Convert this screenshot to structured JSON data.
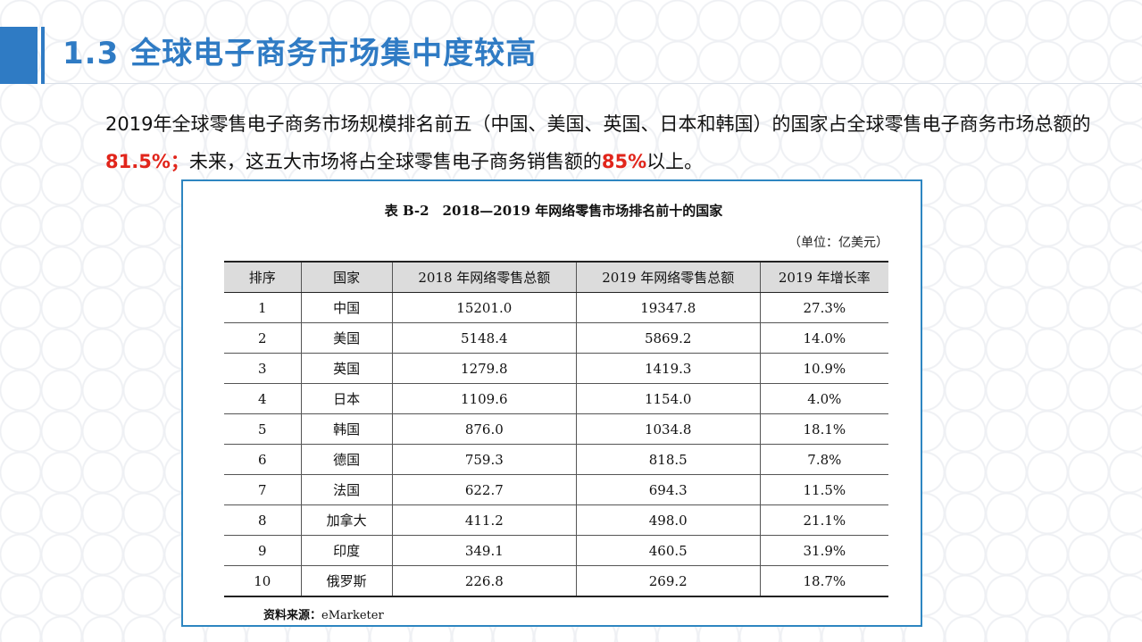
{
  "slide": {
    "title": "1.3 全球电子商务市场集中度较高",
    "intro": {
      "part1": "2019年全球零售电子商务市场规模排名前五（中国、美国、英国、日本和韩国）的国家占全球零售电子商务市场总额的",
      "highlight1": "81.5%；",
      "part2": "未来，这五大市场将占全球零售电子商务销售额的",
      "highlight2": "85%",
      "part3": "以上。"
    },
    "accent_color": "#2f7bc4",
    "highlight_color": "#e1251b"
  },
  "table": {
    "title": "表 B-2　2018—2019 年网络零售市场排名前十的国家",
    "unit": "（单位：亿美元）",
    "headers": [
      "排序",
      "国家",
      "2018 年网络零售总额",
      "2019 年网络零售总额",
      "2019 年增长率"
    ],
    "rows": [
      [
        "1",
        "中国",
        "15201.0",
        "19347.8",
        "27.3%"
      ],
      [
        "2",
        "美国",
        "5148.4",
        "5869.2",
        "14.0%"
      ],
      [
        "3",
        "英国",
        "1279.8",
        "1419.3",
        "10.9%"
      ],
      [
        "4",
        "日本",
        "1109.6",
        "1154.0",
        "4.0%"
      ],
      [
        "5",
        "韩国",
        "876.0",
        "1034.8",
        "18.1%"
      ],
      [
        "6",
        "德国",
        "759.3",
        "818.5",
        "7.8%"
      ],
      [
        "7",
        "法国",
        "622.7",
        "694.3",
        "11.5%"
      ],
      [
        "8",
        "加拿大",
        "411.2",
        "498.0",
        "21.1%"
      ],
      [
        "9",
        "印度",
        "349.1",
        "460.5",
        "31.9%"
      ],
      [
        "10",
        "俄罗斯",
        "226.8",
        "269.2",
        "18.7%"
      ]
    ],
    "source_label": "资料来源：",
    "source_value": "eMarketer",
    "border_color": "#2e86c1"
  }
}
